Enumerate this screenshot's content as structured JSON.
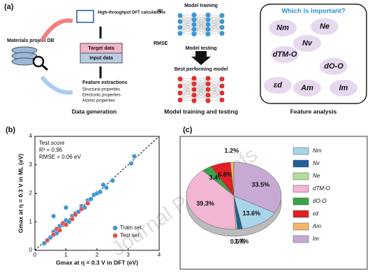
{
  "panel_a": {
    "label": "(a)",
    "source": "Materials project DB",
    "dft": "High-throughput DFT calculations",
    "target": "Target data",
    "input": "Input data",
    "features_title": "Feature extractions",
    "features": [
      "Structural properties",
      "Electronic properties",
      "Atomic properties"
    ],
    "caption1": "Data generation",
    "r2": "R²",
    "rmse": "RMSE",
    "training": "Model training",
    "testing": "Model testing",
    "best": "Best performing model",
    "caption2": "Model training and testing",
    "question": "Which is important?",
    "feature_names": [
      "Nm",
      "Ne",
      "Nv",
      "dTM-O",
      "dO-O",
      "εd",
      "Am",
      "Im"
    ],
    "caption3": "Feature analysis"
  },
  "watermark": "Journal Pre-proofs",
  "chart_data": [
    {
      "type": "scatter",
      "label": "(b)",
      "xlabel": "Gmax at η = 0.3 V in DFT (eV)",
      "ylabel": "Gmax at η = 0.3 V in ML (eV)",
      "annotations": [
        "Test score",
        "R² = 0.96",
        "RMSE = 0.06 eV"
      ],
      "xlim": [
        0,
        4
      ],
      "ylim": [
        0,
        4
      ],
      "xticks": [
        0,
        1,
        2,
        3,
        4
      ],
      "yticks": [
        0,
        1,
        2,
        3,
        4
      ],
      "legend": "lower right",
      "series": [
        {
          "name": "Train set",
          "color": "#3d97d3",
          "x": [
            0.3,
            0.5,
            0.6,
            0.7,
            0.8,
            0.9,
            1.0,
            1.1,
            1.2,
            1.3,
            1.4,
            1.5,
            1.6,
            1.7,
            1.8,
            1.9,
            2.0,
            2.1,
            2.2,
            2.3,
            2.5,
            3.1,
            3.2,
            0.6,
            1.0
          ],
          "values": [
            0.25,
            0.45,
            0.65,
            0.6,
            0.85,
            0.9,
            1.05,
            1.0,
            1.2,
            1.3,
            1.35,
            1.55,
            1.5,
            1.75,
            1.8,
            1.95,
            2.0,
            2.05,
            2.3,
            2.2,
            2.45,
            3.05,
            3.3,
            1.2,
            1.5
          ]
        },
        {
          "name": "Test set",
          "color": "#e0504f",
          "x": [
            0.4,
            0.6,
            0.7,
            0.8,
            0.9,
            1.0,
            1.2,
            1.3,
            1.5,
            1.7
          ],
          "values": [
            0.35,
            0.55,
            0.75,
            0.7,
            0.95,
            0.9,
            1.1,
            1.25,
            1.45,
            1.65
          ]
        }
      ]
    },
    {
      "type": "pie",
      "label": "(c)",
      "categories": [
        "Nm",
        "Nv",
        "Ne",
        "dTM-O",
        "dO-O",
        "εd",
        "Am",
        "Im"
      ],
      "values": [
        13.6,
        1.7,
        0.5,
        39.3,
        3.4,
        6.8,
        1.2,
        33.5
      ],
      "value_labels": [
        "13.6%",
        "1.7%",
        "0.5%",
        "39.3%",
        "3.4%",
        "6.8%",
        "1.2%",
        "33.5%"
      ],
      "colors": [
        "#a9d5ea",
        "#1f5f9c",
        "#b4dc9a",
        "#f2b5d4",
        "#3ba24a",
        "#e11f26",
        "#f6b36f",
        "#c7aad4"
      ],
      "legend": "right"
    }
  ]
}
